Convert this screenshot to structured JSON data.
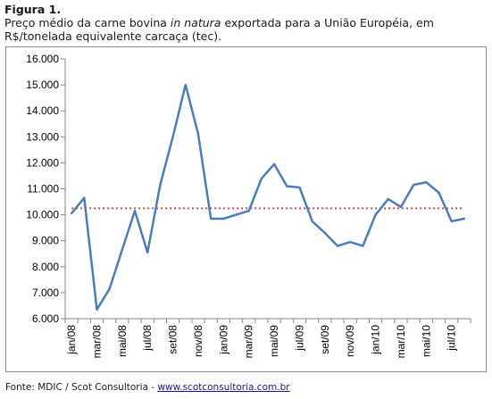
{
  "figure": {
    "label": "Figura 1.",
    "caption_before": "Preço médio da carne bovina ",
    "caption_italic": "in natura",
    "caption_after": " exportada para a União Européia, em R$/tonelada equivalente carcaça (tec)."
  },
  "source": {
    "prefix": "Fonte: MDIC / Scot Consultoria - ",
    "link": "www.scotconsultoria.com.br"
  },
  "colors": {
    "line": "#4a7ebb",
    "average": "#c0504d",
    "axis": "#868686"
  },
  "chart_data": {
    "type": "line",
    "title": "",
    "xlabel": "",
    "ylabel": "",
    "ylim": [
      6000,
      16000
    ],
    "ytick_labels": [
      "6.000",
      "7.000",
      "8.000",
      "9.000",
      "10.000",
      "11.000",
      "12.000",
      "13.000",
      "14.000",
      "15.000",
      "16.000"
    ],
    "xtick_labels": [
      "jan/08",
      "mar/08",
      "mai/08",
      "jul/08",
      "set/08",
      "nov/08",
      "jan/09",
      "mar/09",
      "mai/09",
      "jul/09",
      "set/09",
      "nov/09",
      "jan/10",
      "mar/10",
      "mai/10",
      "jul/10"
    ],
    "grid": false,
    "legend": "none",
    "series": [
      {
        "x": [
          "jan/08",
          "fev/08",
          "mar/08",
          "abr/08",
          "mai/08",
          "jun/08",
          "jul/08",
          "ago/08",
          "set/08",
          "out/08",
          "nov/08",
          "dez/08",
          "jan/09",
          "fev/09",
          "mar/09",
          "abr/09",
          "mai/09",
          "jun/09",
          "jul/09",
          "ago/09",
          "set/09",
          "out/09",
          "nov/09",
          "dez/09",
          "jan/10",
          "fev/10",
          "mar/10",
          "abr/10",
          "mai/10",
          "jun/10",
          "jul/10",
          "ago/10"
        ],
        "values": [
          10050,
          10650,
          6350,
          7150,
          8650,
          10150,
          8550,
          11150,
          13000,
          15000,
          13100,
          9850,
          9850,
          10000,
          10150,
          11400,
          11950,
          11100,
          11050,
          9750,
          9300,
          8800,
          8950,
          8800,
          10000,
          10600,
          10300,
          11150,
          11250,
          10850,
          9750,
          9850
        ]
      },
      {
        "x": [
          "jan/08",
          "ago/10"
        ],
        "values": [
          10250,
          10250
        ]
      }
    ]
  }
}
